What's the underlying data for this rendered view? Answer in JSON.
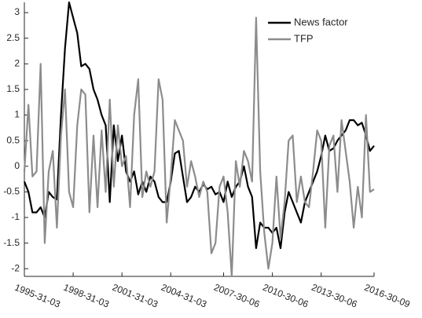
{
  "chart_data": {
    "type": "line",
    "categories": [
      "1995-31-03",
      null,
      null,
      null,
      null,
      null,
      null,
      null,
      null,
      null,
      null,
      null,
      "1998-31-03",
      null,
      null,
      null,
      null,
      null,
      null,
      null,
      null,
      null,
      null,
      null,
      "2001-31-03",
      null,
      null,
      null,
      null,
      null,
      null,
      null,
      null,
      null,
      null,
      null,
      "2004-31-03",
      null,
      null,
      null,
      null,
      null,
      null,
      null,
      null,
      null,
      null,
      null,
      null,
      "2007-30-06",
      null,
      null,
      null,
      null,
      null,
      null,
      null,
      null,
      null,
      null,
      null,
      "2010-30-06",
      null,
      null,
      null,
      null,
      null,
      null,
      null,
      null,
      null,
      null,
      null,
      "2013-30-06",
      null,
      null,
      null,
      null,
      null,
      null,
      null,
      null,
      null,
      null,
      null,
      null,
      "2016-30-09"
    ],
    "series": [
      {
        "name": "News factor",
        "color": "#000000",
        "values": [
          -0.3,
          -0.5,
          -0.9,
          -0.9,
          -0.8,
          -1.0,
          -0.5,
          -0.6,
          -0.65,
          1.0,
          2.3,
          3.2,
          2.9,
          2.6,
          1.95,
          2.0,
          1.9,
          1.5,
          1.3,
          1.0,
          0.8,
          -0.7,
          0.8,
          0.1,
          0.6,
          -0.1,
          -0.3,
          -0.1,
          -0.55,
          -0.3,
          -0.5,
          -0.2,
          -0.3,
          -0.6,
          -0.7,
          -0.7,
          -0.3,
          0.25,
          0.3,
          -0.2,
          -0.7,
          -0.6,
          -0.4,
          -0.5,
          -0.35,
          -0.45,
          -0.4,
          -0.55,
          -0.5,
          -0.7,
          -0.3,
          -0.6,
          -0.4,
          -0.3,
          0.0,
          -0.4,
          -0.6,
          -1.6,
          -1.1,
          -1.2,
          -1.2,
          -1.3,
          -1.2,
          -1.6,
          -0.9,
          -0.5,
          -0.7,
          -0.9,
          -1.1,
          -0.7,
          -0.5,
          -0.3,
          -0.1,
          0.2,
          0.6,
          0.3,
          0.35,
          0.5,
          0.6,
          0.7,
          0.9,
          0.9,
          0.8,
          0.85,
          0.6,
          0.3,
          0.4
        ]
      },
      {
        "name": "TFP",
        "color": "#8c8c8c",
        "values": [
          -0.1,
          1.2,
          -0.2,
          -0.1,
          2.0,
          -1.5,
          -0.1,
          0.3,
          -1.2,
          0.6,
          1.5,
          -0.5,
          -0.8,
          0.8,
          1.5,
          1.4,
          -0.9,
          0.6,
          -0.8,
          0.7,
          -0.5,
          1.3,
          -0.4,
          0.8,
          0.0,
          0.2,
          -0.8,
          1.0,
          1.7,
          -0.6,
          -0.1,
          -0.4,
          -0.1,
          1.7,
          1.3,
          -1.1,
          -0.2,
          0.9,
          0.7,
          0.5,
          -0.4,
          0.1,
          -0.2,
          -0.6,
          -0.3,
          -0.5,
          -1.7,
          -1.5,
          -0.4,
          -0.2,
          -0.9,
          -2.15,
          0.1,
          -0.4,
          0.3,
          0.1,
          -0.3,
          2.9,
          -0.1,
          -1.3,
          -2.0,
          -1.5,
          -0.2,
          -1.4,
          -0.7,
          0.5,
          0.6,
          -0.7,
          -0.2,
          -0.7,
          -0.8,
          -0.1,
          0.7,
          0.5,
          -1.2,
          0.4,
          0.6,
          -0.5,
          0.9,
          0.3,
          -0.3,
          -1.2,
          -0.4,
          -1.0,
          1.0,
          -0.5,
          -0.45
        ]
      }
    ],
    "ylim": [
      -2.15,
      3.2
    ],
    "yticks": [
      -2,
      -1.5,
      -1,
      -0.5,
      0,
      0.5,
      1,
      1.5,
      2,
      2.5,
      3
    ],
    "legend": "upper-right"
  }
}
